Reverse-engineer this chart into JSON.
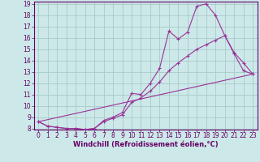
{
  "xlabel": "Windchill (Refroidissement éolien,°C)",
  "bg_color": "#cce8e8",
  "grid_color": "#aacaca",
  "line_color": "#993399",
  "spine_color": "#660066",
  "xlim": [
    -0.5,
    23.5
  ],
  "ylim": [
    7.9,
    19.2
  ],
  "xticks": [
    0,
    1,
    2,
    3,
    4,
    5,
    6,
    7,
    8,
    9,
    10,
    11,
    12,
    13,
    14,
    15,
    16,
    17,
    18,
    19,
    20,
    21,
    22,
    23
  ],
  "yticks": [
    8,
    9,
    10,
    11,
    12,
    13,
    14,
    15,
    16,
    17,
    18,
    19
  ],
  "line1_x": [
    0,
    1,
    2,
    3,
    4,
    5,
    6,
    7,
    8,
    9,
    10,
    11,
    12,
    13,
    14,
    15,
    16,
    17,
    18,
    19,
    20,
    21,
    22,
    23
  ],
  "line1_y": [
    8.6,
    8.2,
    8.1,
    8.0,
    8.0,
    7.9,
    8.0,
    8.7,
    9.0,
    9.4,
    11.1,
    11.0,
    12.0,
    13.3,
    16.6,
    15.9,
    16.5,
    18.8,
    19.0,
    18.0,
    16.2,
    14.7,
    13.8,
    12.8
  ],
  "line2_x": [
    0,
    1,
    2,
    3,
    4,
    5,
    6,
    7,
    8,
    9,
    10,
    11,
    12,
    13,
    14,
    15,
    16,
    17,
    18,
    19,
    20,
    21,
    22,
    23
  ],
  "line2_y": [
    8.6,
    8.2,
    8.1,
    8.0,
    8.0,
    7.9,
    8.0,
    8.6,
    8.9,
    9.2,
    10.3,
    10.7,
    11.3,
    12.1,
    13.1,
    13.8,
    14.4,
    15.0,
    15.4,
    15.8,
    16.2,
    14.6,
    13.1,
    12.8
  ],
  "line3_x": [
    0,
    23
  ],
  "line3_y": [
    8.6,
    12.8
  ],
  "tick_label_color": "#660066",
  "tick_fontsize": 5.5,
  "xlabel_fontsize": 6.0
}
